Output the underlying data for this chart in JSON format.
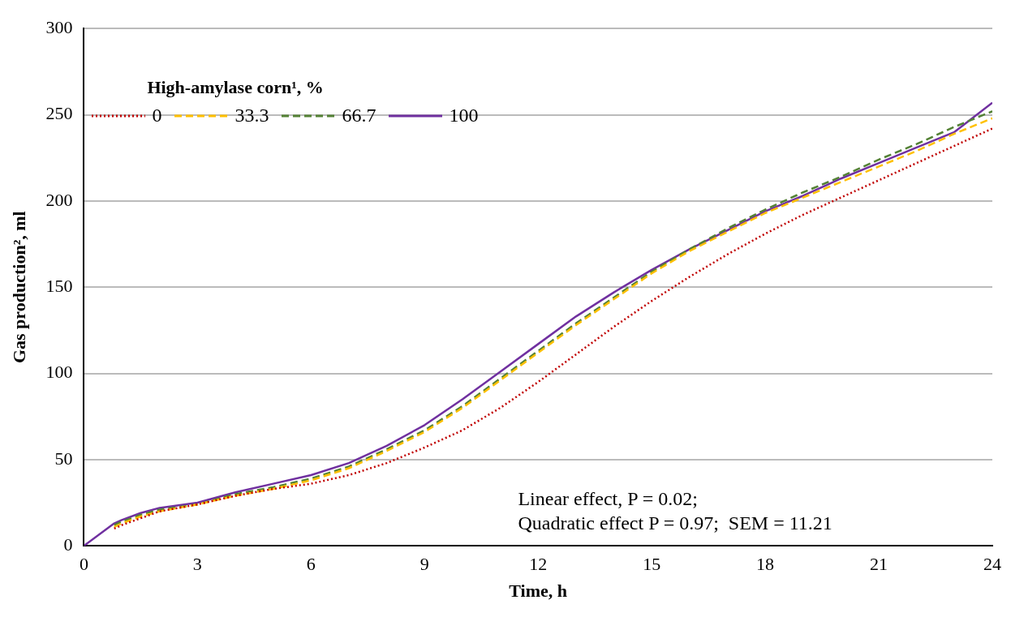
{
  "chart_data": {
    "type": "line",
    "xlabel": "Time, h",
    "ylabel": "Gas production², ml",
    "legend_title": "High-amylase corn¹, %",
    "x": [
      0,
      0.8,
      1,
      1.5,
      2,
      3,
      4,
      5,
      6,
      7,
      8,
      9,
      10,
      11,
      12,
      13,
      14,
      15,
      16,
      17,
      18,
      19,
      20,
      21,
      22,
      23,
      24
    ],
    "series": [
      {
        "name": "0",
        "color": "#c00000",
        "line_style": "dotted",
        "values": [
          null,
          10,
          12,
          16,
          20,
          24,
          29,
          33,
          36,
          41,
          48,
          57,
          67,
          80,
          95,
          111,
          127,
          142,
          156,
          169,
          181,
          192,
          202,
          212,
          222,
          232,
          242
        ]
      },
      {
        "name": "33.3",
        "color": "#ffc000",
        "line_style": "dashed",
        "values": [
          null,
          11,
          13,
          17,
          20,
          24,
          29,
          33,
          38,
          45,
          55,
          66,
          80,
          96,
          112,
          128,
          143,
          158,
          171,
          182,
          193,
          202,
          211,
          220,
          229,
          239,
          248
        ]
      },
      {
        "name": "66.7",
        "color": "#548235",
        "line_style": "dashed",
        "values": [
          null,
          12,
          14,
          18,
          21,
          24,
          30,
          34,
          39,
          46,
          56,
          67,
          81,
          97,
          113,
          129,
          144,
          159,
          172,
          184,
          195,
          205,
          214,
          224,
          233,
          243,
          252
        ]
      },
      {
        "name": "100",
        "color": "#7030a0",
        "line_style": "solid",
        "values": [
          0,
          13,
          15,
          19,
          22,
          25,
          31,
          36,
          41,
          48,
          58,
          70,
          85,
          101,
          117,
          133,
          147,
          160,
          172,
          183,
          194,
          203,
          213,
          222,
          231,
          240,
          257
        ]
      }
    ],
    "xlim": [
      0,
      24
    ],
    "xticks": [
      0,
      3,
      6,
      9,
      12,
      15,
      18,
      21,
      24
    ],
    "ylim": [
      0,
      300
    ],
    "yticks": [
      0,
      50,
      100,
      150,
      200,
      250,
      300
    ],
    "grid": "y",
    "legend": "top left",
    "marker": "none",
    "annotations": [
      "Linear effect, P = 0.02;",
      "Quadratic effect P = 0.97;  SEM = 11.21"
    ]
  }
}
